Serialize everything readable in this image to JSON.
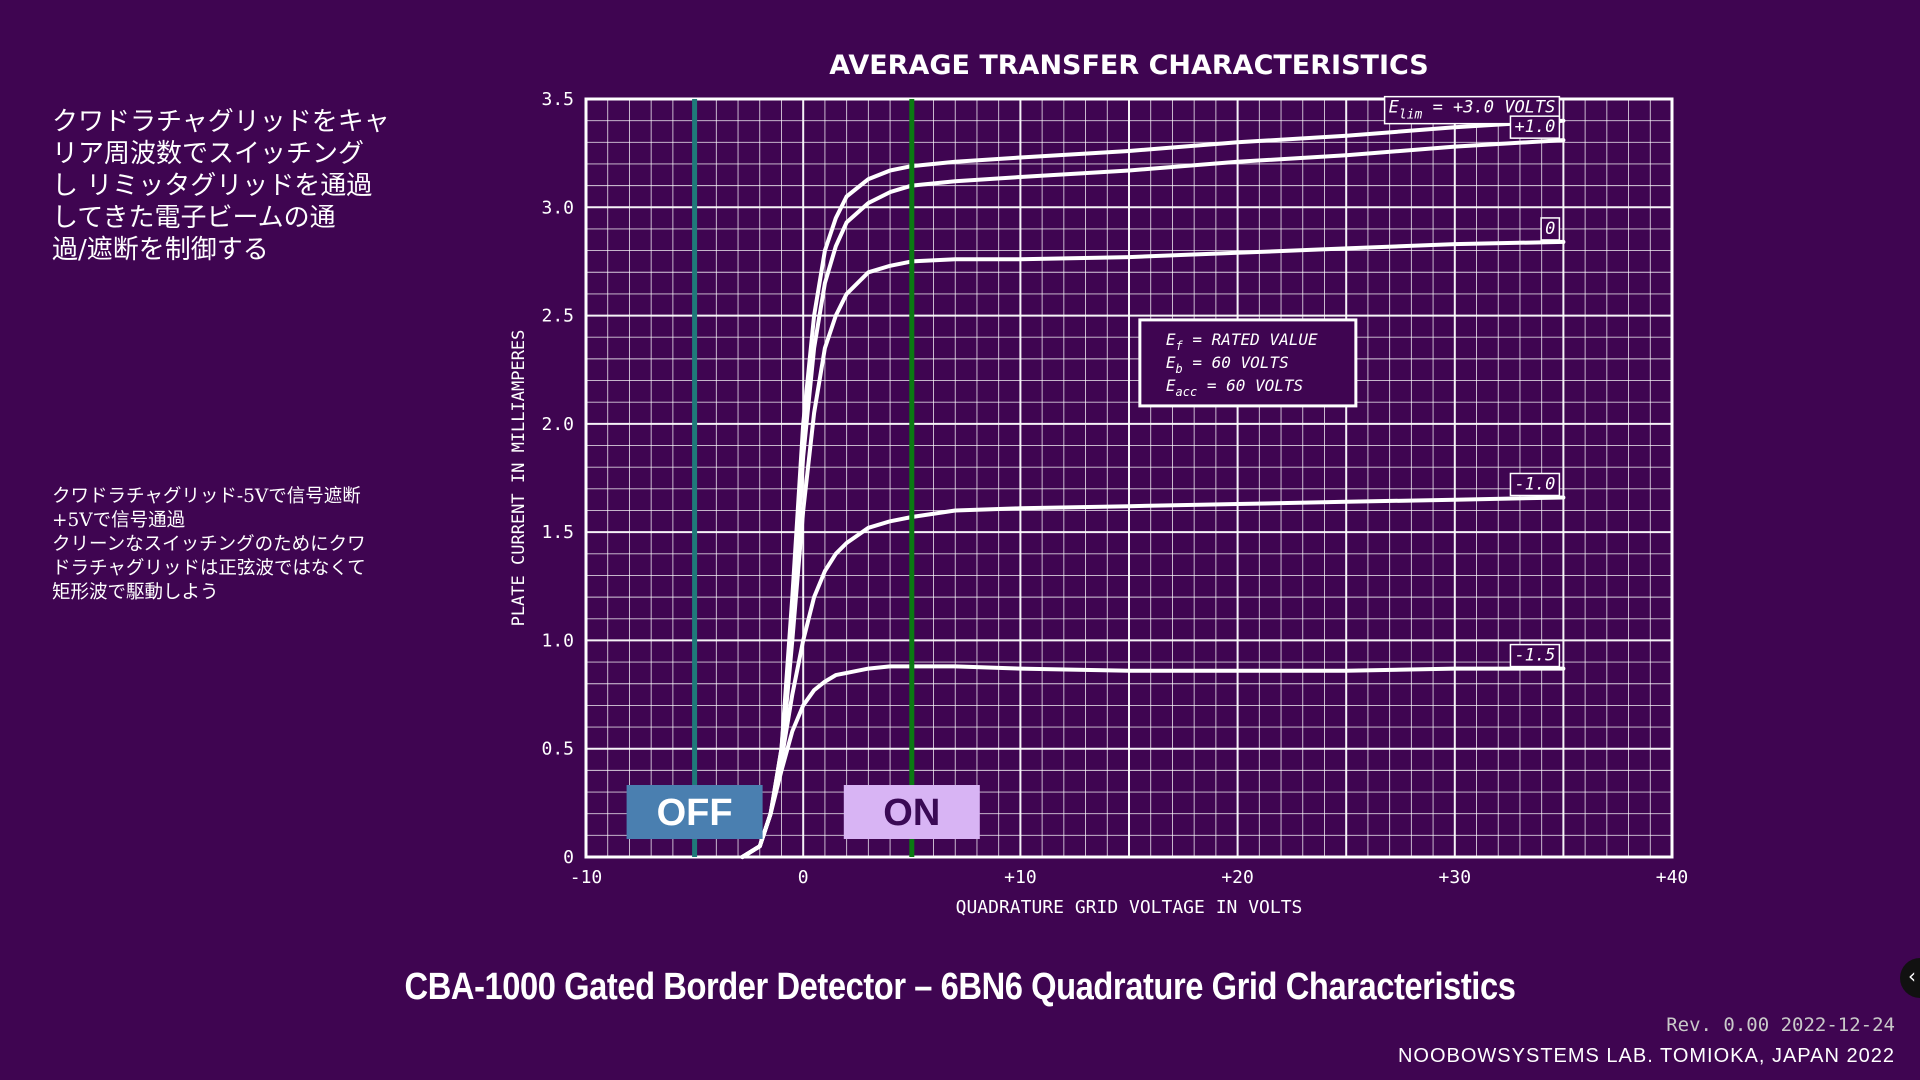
{
  "slide": {
    "note_main": "クワドラチャグリッドをキャ\nリア周波数でスイッチング\nし リミッタグリッドを通過\nしてきた電子ビームの通\n過/遮断を制御する",
    "note_sub": "クワドラチャグリッド-5Vで信号遮断\n+5Vで信号通過\nクリーンなスイッチングのためにクワ\nドラチャグリッドは正弦波ではなくて\n矩形波で駆動しよう",
    "footer_title": "CBA-1000 Gated Border Detector – 6BN6 Quadrature Grid Characteristics",
    "revision": "Rev. 0.00 2022-12-24",
    "credit": "NOOBOWSYSTEMS LAB. TOMIOKA, JAPAN 2022",
    "nav_icon": "chevron-left-icon"
  },
  "chart_data": {
    "type": "line",
    "title": "AVERAGE TRANSFER CHARACTERISTICS",
    "xlabel": "QUADRATURE GRID VOLTAGE IN VOLTS",
    "ylabel": "PLATE CURRENT IN MILLIAMPERES",
    "xlim": [
      -10,
      40
    ],
    "ylim": [
      0,
      3.5
    ],
    "xticks": [
      -10,
      0,
      10,
      20,
      30,
      40
    ],
    "xtick_labels": [
      "-10",
      "0",
      "+10",
      "+20",
      "+30",
      "+40"
    ],
    "yticks": [
      0,
      0.5,
      1.0,
      1.5,
      2.0,
      2.5,
      3.0,
      3.5
    ],
    "ytick_labels": [
      "0",
      "0.5",
      "1.0",
      "1.5",
      "2.0",
      "2.5",
      "3.0",
      "3.5"
    ],
    "grid": true,
    "series": [
      {
        "name": "Elim = +3.0 VOLTS",
        "label": "E",
        "label_sub": "lim",
        "label_rest": " = +3.0 VOLTS",
        "x": [
          -2.8,
          -2,
          -1.5,
          -1,
          -0.5,
          0,
          0.5,
          1,
          1.5,
          2,
          3,
          4,
          5,
          7,
          10,
          15,
          20,
          25,
          30,
          35
        ],
        "y": [
          0,
          0.05,
          0.2,
          0.5,
          1.2,
          2.0,
          2.5,
          2.8,
          2.95,
          3.05,
          3.13,
          3.17,
          3.19,
          3.21,
          3.23,
          3.26,
          3.3,
          3.33,
          3.37,
          3.4
        ]
      },
      {
        "name": "+1.0",
        "label": "+1.0",
        "x": [
          -2.8,
          -2,
          -1.5,
          -1,
          -0.5,
          0,
          0.5,
          1,
          1.5,
          2,
          3,
          4,
          5,
          7,
          10,
          15,
          20,
          25,
          30,
          35
        ],
        "y": [
          0,
          0.05,
          0.2,
          0.5,
          1.1,
          1.85,
          2.35,
          2.65,
          2.82,
          2.93,
          3.02,
          3.07,
          3.1,
          3.12,
          3.14,
          3.17,
          3.21,
          3.24,
          3.28,
          3.31
        ]
      },
      {
        "name": "0",
        "label": "0",
        "x": [
          -2.8,
          -2,
          -1.5,
          -1,
          -0.5,
          0,
          0.5,
          1,
          1.5,
          2,
          3,
          4,
          5,
          7,
          10,
          15,
          20,
          25,
          30,
          35
        ],
        "y": [
          0,
          0.05,
          0.2,
          0.45,
          1.0,
          1.6,
          2.05,
          2.35,
          2.5,
          2.6,
          2.7,
          2.73,
          2.75,
          2.76,
          2.76,
          2.77,
          2.79,
          2.81,
          2.83,
          2.84
        ]
      },
      {
        "name": "-1.0",
        "label": "-1.0",
        "x": [
          -2.8,
          -2,
          -1.5,
          -1,
          -0.5,
          0,
          0.5,
          1,
          1.5,
          2,
          3,
          4,
          5,
          7,
          10,
          15,
          20,
          25,
          30,
          35
        ],
        "y": [
          0,
          0.05,
          0.2,
          0.45,
          0.75,
          1.0,
          1.2,
          1.32,
          1.4,
          1.45,
          1.52,
          1.55,
          1.57,
          1.6,
          1.61,
          1.62,
          1.63,
          1.64,
          1.65,
          1.66
        ]
      },
      {
        "name": "-1.5",
        "label": "-1.5",
        "x": [
          -2.8,
          -2,
          -1.5,
          -1,
          -0.5,
          0,
          0.5,
          1,
          1.5,
          2,
          3,
          4,
          5,
          7,
          10,
          15,
          20,
          25,
          30,
          35
        ],
        "y": [
          0,
          0.05,
          0.2,
          0.4,
          0.58,
          0.7,
          0.77,
          0.81,
          0.84,
          0.85,
          0.87,
          0.88,
          0.88,
          0.88,
          0.87,
          0.86,
          0.86,
          0.86,
          0.87,
          0.87
        ]
      }
    ],
    "conditions": [
      {
        "sym": "E",
        "sub": "f",
        "rest": " = RATED VALUE"
      },
      {
        "sym": "E",
        "sub": "b",
        "rest": " = 60 VOLTS"
      },
      {
        "sym": "E",
        "sub": "acc",
        "rest": " = 60 VOLTS"
      }
    ],
    "markers": [
      {
        "name": "OFF",
        "x": -5,
        "line_color": "#1f7a7a",
        "box_color": "#4a7fb0",
        "text_color": "#ffffff"
      },
      {
        "name": "ON",
        "x": 5,
        "line_color": "#0a7a12",
        "box_color": "#d8b4f4",
        "text_color": "#3a0a55"
      }
    ]
  }
}
